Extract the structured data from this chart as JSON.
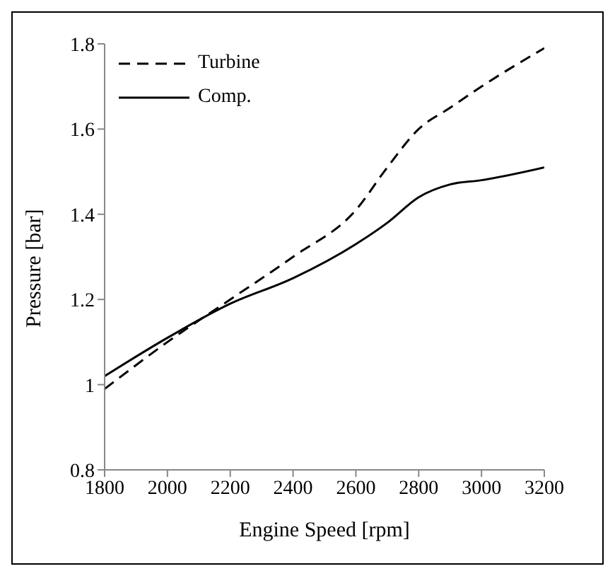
{
  "chart_data": {
    "type": "line",
    "xlabel": "Engine Speed [rpm]",
    "ylabel": "Pressure [bar]",
    "x": [
      1800,
      2000,
      2200,
      2400,
      2600,
      2700,
      2800,
      2900,
      3000,
      3200
    ],
    "series": [
      {
        "name": "Turbine",
        "color": "#000000",
        "line_style": "dashed",
        "values": [
          0.99,
          1.1,
          1.2,
          1.3,
          1.41,
          1.51,
          1.6,
          1.65,
          1.7,
          1.79
        ]
      },
      {
        "name": "Comp.",
        "color": "#000000",
        "line_style": "solid",
        "values": [
          1.02,
          1.11,
          1.19,
          1.25,
          1.33,
          1.38,
          1.44,
          1.47,
          1.48,
          1.51
        ]
      }
    ],
    "xlim": [
      1800,
      3200
    ],
    "xticks": [
      1800,
      2000,
      2200,
      2400,
      2600,
      2800,
      3000,
      3200
    ],
    "ylim": [
      0.8,
      1.8
    ],
    "yticks": [
      0.8,
      1,
      1.2,
      1.4,
      1.6,
      1.8
    ],
    "grid": false,
    "legend": "top left",
    "marker": "none"
  }
}
